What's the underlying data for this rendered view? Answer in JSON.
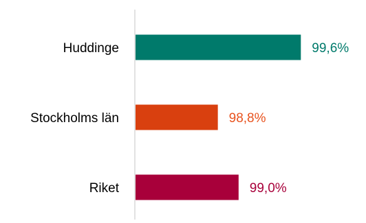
{
  "chart_data": {
    "type": "bar",
    "orientation": "horizontal",
    "categories": [
      "Huddinge",
      "Stockholms län",
      "Riket"
    ],
    "values": [
      99.6,
      98.8,
      99.0
    ],
    "value_labels": [
      "99,6%",
      "98,8%",
      "99,0%"
    ],
    "colors": [
      "#007A6B",
      "#D9400F",
      "#A8003A"
    ],
    "label_colors": [
      "#007A6B",
      "#E8531F",
      "#A8003A"
    ],
    "xlim": [
      98.0,
      99.85
    ],
    "grid": false,
    "legend": "none",
    "axis_color": "#D9D9D9"
  }
}
